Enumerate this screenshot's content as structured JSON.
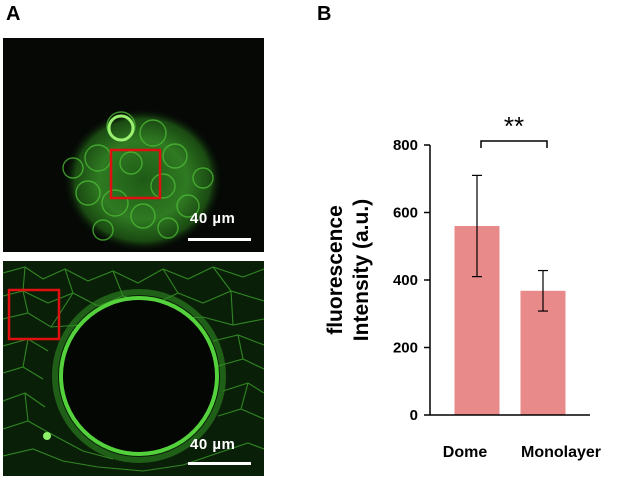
{
  "panels": {
    "a_label": "A",
    "b_label": "B"
  },
  "micrographs": {
    "top": {
      "scale_label": "40 µm"
    },
    "bottom": {
      "scale_label": "40 µm"
    },
    "roi_color": "#e01010",
    "fluor_color": "#3ec82a"
  },
  "chart_data": {
    "type": "bar",
    "categories": [
      "Dome",
      "Monolayer"
    ],
    "values": [
      560,
      368
    ],
    "error": [
      150,
      60
    ],
    "ylabel_lines": [
      "fluorescence",
      "Intensity (a.u.)"
    ],
    "xlabel": "",
    "ylim": [
      0,
      800
    ],
    "yticks": [
      0,
      200,
      400,
      600,
      800
    ],
    "bar_color": "#e88a89",
    "significance": {
      "label": "**",
      "between": [
        "Dome",
        "Monolayer"
      ]
    },
    "grid": false
  }
}
